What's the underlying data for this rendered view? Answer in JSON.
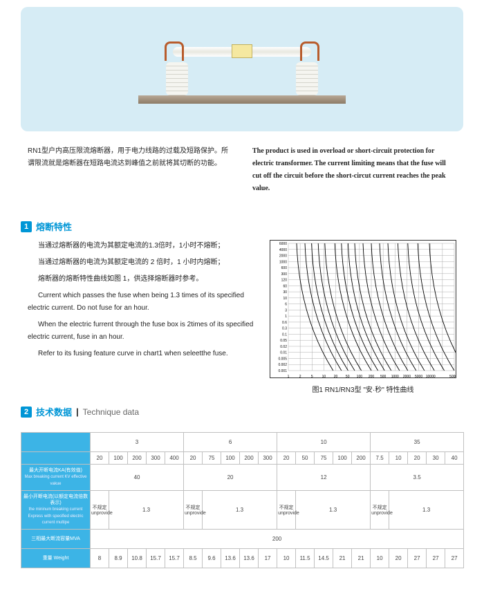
{
  "intro": {
    "zh": "RN1型户内高压限流熔断器，用于电力线路的过载及短路保护。所谓限流就是熔断器在短路电流达到峰值之前就将其切断的功能。",
    "en": "The product is used in overload or short-circuit protection for electric transformer. The current limiting means that the fuse will cut off the circuit before the short-circut current reaches the peak value."
  },
  "section1": {
    "badge": "1",
    "title": "熔断特性",
    "p1_zh": "当通过熔断器的电流为其额定电流的1.3倍时，1小时不熔断；",
    "p2_zh": "当通过熔断器的电流为其额定电流的 2 倍时，1 小时内熔断；",
    "p3_zh": "熔断器的熔断特性曲线如图 1，供选择熔断器时参考。",
    "p1_en": "Current which passes the fuse when being 1.3 times of its specified electric current. Do not fuse for an hour.",
    "p2_en": "When the electric furrent through the fuse box is 2times of its specified electric current, fuse in an hour.",
    "p3_en": "Refer to its fusing feature curve in chart1 when seleetthe fuse."
  },
  "chart": {
    "y_ticks": [
      "6000",
      "4000",
      "2000",
      "1000",
      "600",
      "300",
      "120",
      "60",
      "30",
      "10",
      "6",
      "3",
      "1",
      "0.6",
      "0.3",
      "0.1",
      "0.05",
      "0.02",
      "0.01",
      "0.005",
      "0.002",
      "0.001"
    ],
    "x_ticks": [
      "1",
      "2",
      "5",
      "10",
      "20",
      "50",
      "100",
      "200",
      "500",
      "1000",
      "2000",
      "5000",
      "10000",
      "",
      "50000"
    ],
    "caption": "图1 RN1/RN3型 \"安·秒\" 特性曲线",
    "curve_starts_y": [
      0.05,
      0.1,
      0.14,
      0.18,
      0.22,
      0.28,
      0.32,
      0.36,
      0.4,
      0.45,
      0.5,
      0.55,
      0.6,
      0.66,
      0.72,
      0.78,
      0.85
    ],
    "grid_color": "#999",
    "curve_color": "#000"
  },
  "section2": {
    "badge": "2",
    "title_zh": "技术数据",
    "title_en": "Technique data"
  },
  "table": {
    "hdr_blank": "",
    "groups": [
      "3",
      "6",
      "10",
      "35"
    ],
    "sub": [
      "20",
      "100",
      "200",
      "300",
      "400",
      "20",
      "75",
      "100",
      "200",
      "300",
      "20",
      "50",
      "75",
      "100",
      "200",
      "7.5",
      "10",
      "20",
      "30",
      "40"
    ],
    "rows": [
      {
        "label_zh": "最大开断电流KA(有效值)",
        "label_en": "Max breaking current KV effective vakue",
        "cells": [
          "40",
          "20",
          "12",
          "3.5"
        ],
        "span": [
          5,
          5,
          5,
          5
        ]
      },
      {
        "label_zh": "最小开断电流(以额定电流倍数表示)",
        "label_en": "the mininum breaking current Express with specified electric current multipe",
        "cells": [
          "不规定 unprovide",
          "1.3",
          "不规定 unprovide",
          "1.3",
          "不规定 unprovide",
          "1.3",
          "不规定 unprovide",
          "1.3"
        ],
        "span": [
          1,
          4,
          1,
          4,
          1,
          4,
          1,
          4
        ]
      },
      {
        "label_zh": "三相最大断流容量MVA",
        "label_en": "",
        "cells": [
          "200"
        ],
        "span": [
          20
        ]
      },
      {
        "label_zh": "重量 Weight",
        "label_en": "",
        "cells": [
          "8",
          "8.9",
          "10.8",
          "15.7",
          "15.7",
          "8.5",
          "9.6",
          "13.6",
          "13.6",
          "17",
          "10",
          "11.5",
          "14.5",
          "21",
          "21",
          "10",
          "20",
          "27",
          "27",
          "27"
        ],
        "span": [
          1,
          1,
          1,
          1,
          1,
          1,
          1,
          1,
          1,
          1,
          1,
          1,
          1,
          1,
          1,
          1,
          1,
          1,
          1,
          1
        ]
      }
    ]
  }
}
